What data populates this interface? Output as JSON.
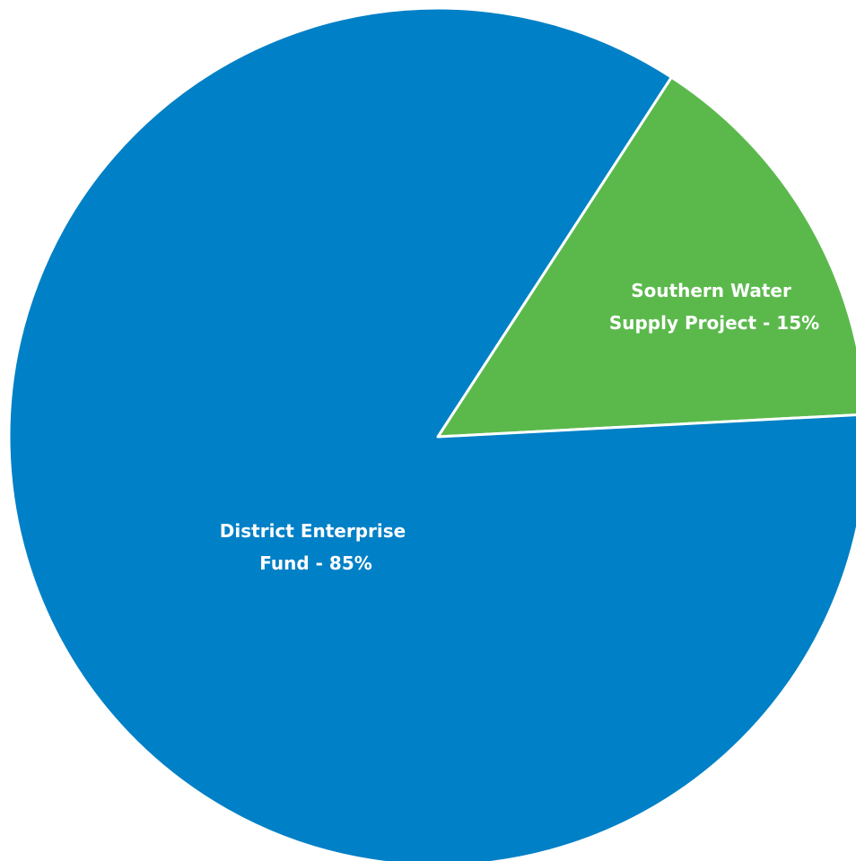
{
  "chart_data": {
    "type": "pie",
    "slices": [
      {
        "label_lines": [
          "Southern Water",
          "Supply Project - 15%"
        ],
        "category": "Southern Water Supply Project",
        "value": 15,
        "color": "#5bb94c"
      },
      {
        "label_lines": [
          "District Enterprise",
          "Fund - 85%"
        ],
        "category": "District Enterprise Fund",
        "value": 85,
        "color": "#0080c6"
      }
    ],
    "start_angle_deg": 33,
    "direction": "clockwise",
    "slice_border_color": "#ffffff"
  }
}
